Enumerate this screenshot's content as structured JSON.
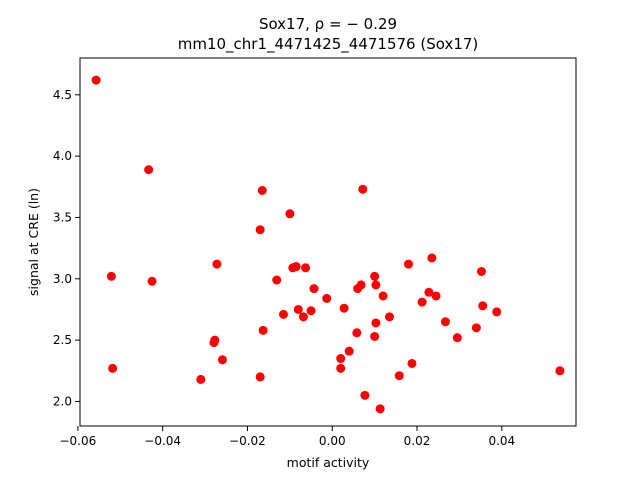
{
  "chart_data": {
    "type": "scatter",
    "title_line1": "Sox17, ρ = − 0.29",
    "title_line2": "mm10_chr1_4471425_4471576 (Sox17)",
    "xlabel": "motif activity",
    "ylabel": "signal at CRE (ln)",
    "xlim": [
      -0.0595,
      0.0575
    ],
    "ylim": [
      1.8,
      4.8
    ],
    "xticks": [
      -0.06,
      -0.04,
      -0.02,
      0.0,
      0.02,
      0.04
    ],
    "xtick_labels": [
      "−0.06",
      "−0.04",
      "−0.02",
      "0.00",
      "0.02",
      "0.04"
    ],
    "yticks": [
      2.0,
      2.5,
      3.0,
      3.5,
      4.0,
      4.5
    ],
    "ytick_labels": [
      "2.0",
      "2.5",
      "3.0",
      "3.5",
      "4.0",
      "4.5"
    ],
    "marker_color": "#ff0000",
    "grid": false,
    "points": [
      {
        "x": -0.0557,
        "y": 4.62
      },
      {
        "x": -0.0433,
        "y": 3.89
      },
      {
        "x": -0.0425,
        "y": 2.98
      },
      {
        "x": -0.0521,
        "y": 3.02
      },
      {
        "x": -0.0518,
        "y": 2.27
      },
      {
        "x": -0.031,
        "y": 2.18
      },
      {
        "x": -0.0272,
        "y": 3.12
      },
      {
        "x": -0.0277,
        "y": 2.5
      },
      {
        "x": -0.0279,
        "y": 2.48
      },
      {
        "x": -0.0259,
        "y": 2.34
      },
      {
        "x": -0.017,
        "y": 2.2
      },
      {
        "x": -0.017,
        "y": 3.4
      },
      {
        "x": -0.0165,
        "y": 3.72
      },
      {
        "x": -0.0163,
        "y": 2.58
      },
      {
        "x": -0.0131,
        "y": 2.99
      },
      {
        "x": -0.0115,
        "y": 2.71
      },
      {
        "x": -0.01,
        "y": 3.53
      },
      {
        "x": -0.0093,
        "y": 3.09
      },
      {
        "x": -0.0085,
        "y": 3.1
      },
      {
        "x": -0.008,
        "y": 2.75
      },
      {
        "x": -0.0068,
        "y": 2.69
      },
      {
        "x": -0.0063,
        "y": 3.09
      },
      {
        "x": -0.005,
        "y": 2.74
      },
      {
        "x": -0.0043,
        "y": 2.92
      },
      {
        "x": -0.0013,
        "y": 2.84
      },
      {
        "x": 0.002,
        "y": 2.35
      },
      {
        "x": 0.002,
        "y": 2.27
      },
      {
        "x": 0.0028,
        "y": 2.76
      },
      {
        "x": 0.004,
        "y": 2.41
      },
      {
        "x": 0.0058,
        "y": 2.56
      },
      {
        "x": 0.006,
        "y": 2.92
      },
      {
        "x": 0.0068,
        "y": 2.95
      },
      {
        "x": 0.0072,
        "y": 3.73
      },
      {
        "x": 0.0077,
        "y": 2.05
      },
      {
        "x": 0.01,
        "y": 3.02
      },
      {
        "x": 0.0103,
        "y": 2.95
      },
      {
        "x": 0.0103,
        "y": 2.64
      },
      {
        "x": 0.01,
        "y": 2.53
      },
      {
        "x": 0.0113,
        "y": 1.94
      },
      {
        "x": 0.012,
        "y": 2.86
      },
      {
        "x": 0.0135,
        "y": 2.69
      },
      {
        "x": 0.0158,
        "y": 2.21
      },
      {
        "x": 0.018,
        "y": 3.12
      },
      {
        "x": 0.0188,
        "y": 2.31
      },
      {
        "x": 0.0212,
        "y": 2.81
      },
      {
        "x": 0.0228,
        "y": 2.89
      },
      {
        "x": 0.0235,
        "y": 3.17
      },
      {
        "x": 0.0245,
        "y": 2.86
      },
      {
        "x": 0.0267,
        "y": 2.65
      },
      {
        "x": 0.0295,
        "y": 2.52
      },
      {
        "x": 0.034,
        "y": 2.6
      },
      {
        "x": 0.0352,
        "y": 3.06
      },
      {
        "x": 0.0355,
        "y": 2.78
      },
      {
        "x": 0.0388,
        "y": 2.73
      },
      {
        "x": 0.0537,
        "y": 2.25
      }
    ]
  }
}
